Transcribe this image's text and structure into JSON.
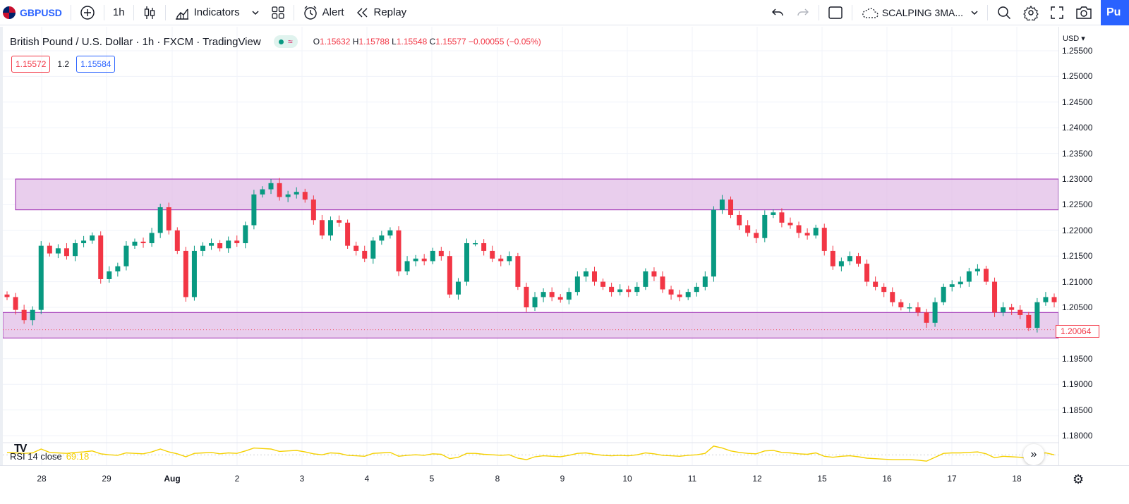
{
  "toolbar": {
    "symbol": "GBPUSD",
    "interval": "1h",
    "indicators_label": "Indicators",
    "alert_label": "Alert",
    "replay_label": "Replay",
    "layout_name": "SCALPING 3MA...",
    "publish_label": "Pu",
    "icons": [
      "plus-circle-icon",
      "candles-icon",
      "indicators-icon",
      "chevron-down-icon",
      "layouts-icon",
      "alert-clock-icon",
      "replay-icon",
      "undo-icon",
      "redo-icon",
      "rectangle-icon",
      "cloud-icon",
      "search-icon",
      "gear-icon",
      "fullscreen-icon",
      "camera-icon"
    ]
  },
  "legend": {
    "title": "British Pound / U.S. Dollar · 1h · FXCM · TradingView",
    "o_label": "O",
    "o": "1.15632",
    "h_label": "H",
    "h": "1.15788",
    "l_label": "L",
    "l": "1.15548",
    "c_label": "C",
    "c": "1.15577",
    "change": "−0.00055 (−0.05%)"
  },
  "pricebox": {
    "sell": "1.15572",
    "spread": "1.2",
    "buy": "1.15584"
  },
  "rsi": {
    "label": "RSI 14 close",
    "value": "69.18"
  },
  "price_axis": {
    "currency": "USD",
    "ticks": [
      "1.25500",
      "1.25000",
      "1.24500",
      "1.24000",
      "1.23500",
      "1.23000",
      "1.22500",
      "1.22000",
      "1.21500",
      "1.21000",
      "1.20500",
      "1.20000",
      "1.19500",
      "1.19000",
      "1.18500",
      "1.18000"
    ],
    "last_price": "1.20064"
  },
  "time_axis": {
    "labels": [
      {
        "text": "28",
        "bold": false
      },
      {
        "text": "29",
        "bold": false
      },
      {
        "text": "Aug",
        "bold": true
      },
      {
        "text": "2",
        "bold": false
      },
      {
        "text": "3",
        "bold": false
      },
      {
        "text": "4",
        "bold": false
      },
      {
        "text": "5",
        "bold": false
      },
      {
        "text": "8",
        "bold": false
      },
      {
        "text": "9",
        "bold": false
      },
      {
        "text": "10",
        "bold": false
      },
      {
        "text": "11",
        "bold": false
      },
      {
        "text": "12",
        "bold": false
      },
      {
        "text": "15",
        "bold": false
      },
      {
        "text": "16",
        "bold": false
      },
      {
        "text": "17",
        "bold": false
      },
      {
        "text": "18",
        "bold": false
      }
    ]
  },
  "colors": {
    "up": "#089981",
    "down": "#f23645",
    "zone_fill": "#e1bee7",
    "zone_border": "#9c27b0",
    "rsi_line": "#f5d000",
    "accent": "#2962ff"
  },
  "chart_data": {
    "type": "candlestick",
    "y_scale": "price",
    "ylim": [
      1.176,
      1.258
    ],
    "zones": [
      {
        "from": 1.224,
        "to": 1.23
      },
      {
        "from": 1.199,
        "to": 1.204
      }
    ],
    "series": [
      {
        "values": [
          1.207,
          1.2045,
          1.2025,
          1.2045,
          1.217,
          1.2155,
          1.2165,
          1.215,
          1.2175,
          1.218,
          1.219,
          1.2105,
          1.212,
          1.213,
          1.217,
          1.2178,
          1.2175,
          1.2195,
          1.2245,
          1.22,
          1.216,
          1.207,
          1.216,
          1.217,
          1.2175,
          1.2165,
          1.218,
          1.2175,
          1.221,
          1.227,
          1.228,
          1.2292,
          1.2265,
          1.227,
          1.2275,
          1.226,
          1.222,
          1.219,
          1.222,
          1.2215,
          1.217,
          1.216,
          1.2145,
          1.218,
          1.219,
          1.22,
          1.212,
          1.214,
          1.2145,
          1.214,
          1.216,
          1.215,
          1.2075,
          1.21,
          1.2175,
          1.2175,
          1.216,
          1.2145,
          1.214,
          1.215,
          1.209,
          1.205,
          1.207,
          1.208,
          1.207,
          1.2065,
          1.208,
          1.211,
          1.212,
          1.21,
          1.209,
          1.208,
          1.2085,
          1.208,
          1.209,
          1.212,
          1.211,
          1.2085,
          1.2075,
          1.207,
          1.208,
          1.209,
          1.211,
          1.224,
          1.226,
          1.223,
          1.221,
          1.2195,
          1.2185,
          1.223,
          1.2235,
          1.2215,
          1.221,
          1.2195,
          1.219,
          1.2205,
          1.216,
          1.213,
          1.214,
          1.215,
          1.2135,
          1.21,
          1.209,
          1.208,
          1.206,
          1.205,
          1.205,
          1.204,
          1.202,
          1.206,
          1.209,
          1.2095,
          1.21,
          1.212,
          1.2125,
          1.21,
          1.204,
          1.205,
          1.2045,
          1.2035,
          1.201,
          1.206,
          1.207,
          1.206
        ]
      }
    ],
    "rsi_values": [
      55,
      54,
      53,
      54,
      62,
      55,
      54,
      53,
      55,
      56,
      58,
      52,
      50,
      49,
      54,
      53,
      52,
      56,
      62,
      56,
      52,
      46,
      53,
      54,
      55,
      52,
      54,
      53,
      58,
      64,
      63,
      62,
      57,
      58,
      59,
      56,
      52,
      50,
      54,
      53,
      49,
      48,
      47,
      53,
      54,
      55,
      47,
      49,
      50,
      49,
      52,
      51,
      42,
      45,
      53,
      53,
      51,
      50,
      49,
      50,
      43,
      40,
      46,
      48,
      47,
      46,
      49,
      53,
      54,
      51,
      49,
      48,
      49,
      48,
      50,
      54,
      52,
      49,
      48,
      47,
      49,
      50,
      53,
      68,
      64,
      58,
      55,
      53,
      52,
      58,
      59,
      55,
      54,
      52,
      51,
      54,
      47,
      45,
      47,
      48,
      46,
      43,
      42,
      41,
      40,
      40,
      40,
      39,
      37,
      45,
      53,
      54,
      54,
      55,
      56,
      52,
      44,
      47,
      46,
      45,
      42,
      52,
      54,
      50
    ]
  }
}
